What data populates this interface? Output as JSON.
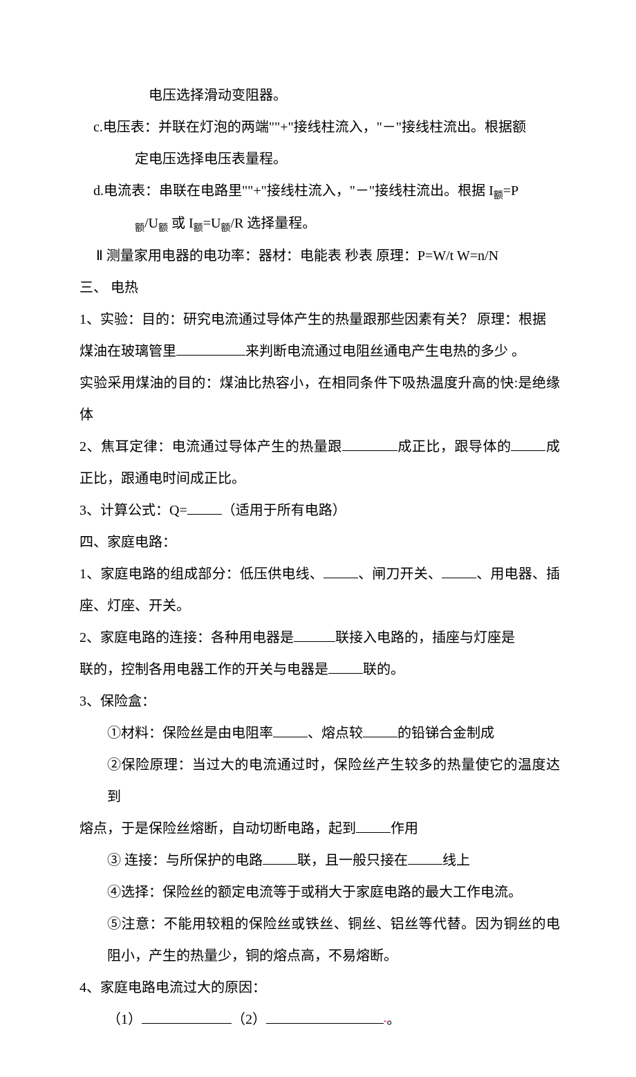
{
  "lines": {
    "l1": "电压选择滑动变阻器。",
    "l2_a": "c.电压表：并联在灯泡的两端\"\"+\"接线柱流入，\"－\"接线柱流出。根据额",
    "l2_b": "定电压选择电压表量程。",
    "l3_a": "d.电流表：串联在电路里\"\"+\"接线柱流入，\"－\"接线柱流出。根据 I",
    "l3_sub1": "额",
    "l3_b": "=P",
    "l3_c": "/U",
    "l3_d": " 或 I",
    "l3_e": "=U",
    "l3_f": "/R 选择量程。",
    "l4": "Ⅱ 测量家用电器的电功率：器材：电能表 秒表 原理：P=W/t     W=n/N",
    "l5": "三、 电热",
    "l6_a": "1、实验：目的：研究电流通过导体产生的热量跟那些因素有关？  原理：根据",
    "l6_b": "煤油在玻璃管里",
    "l6_c": "来判断电流通过电阻丝通电产生电热的多少 。",
    "l7": "实验采用煤油的目的：煤油比热容小，在相同条件下吸热温度升高的快:是绝缘体",
    "l8_a": "2、焦耳定律：电流通过导体产生的热量跟",
    "l8_b": "成正比，跟导体的",
    "l8_c": "成正比，跟通电时间成正比。",
    "l9_a": "3、计算公式：Q=",
    "l9_b": "（适用于所有电路）",
    "l10": "四、家庭电路：",
    "l11_a": "1、家庭电路的组成部分：低压供电线、",
    "l11_b": "、闸刀开关、",
    "l11_c": "、用电器、插座、灯座、开关。",
    "l12_a": "2、家庭电路的连接：各种用电器是",
    "l12_b": "联接入电路的，插座与灯座是",
    "l12_c": "联的，控制各用电器工作的开关与电器是",
    "l12_d": "联的。",
    "l13": "3、保险盒：",
    "l14_a": "①材料：保险丝是由电阻率",
    "l14_b": "、熔点较",
    "l14_c": "的铅锑合金制成",
    "l15_a": "②保险原理：当过大的电流通过时，保险丝产生较多的热量使它的温度达到",
    "l15_b": "熔点，于是保险丝熔断，自动切断电路，起到",
    "l15_c": "作用",
    "l16_a": "③ 连接：与所保护的电路",
    "l16_b": "联，且一般只接在",
    "l16_c": "线上",
    "l17": "④选择：保险丝的额定电流等于或稍大于家庭电路的最大工作电流。",
    "l18": "⑤注意：不能用较粗的保险丝或铁丝、铜丝、铝丝等代替。因为铜丝的电阻小，产生的热量少，铜的熔点高，不易熔断。",
    "l19": "4、家庭电路电流过大的原因：",
    "l20_a": "（1）",
    "l20_b": "（2）",
    "l20_c": "。"
  },
  "colors": {
    "background": "#ffffff",
    "text": "#000000",
    "accent": "#ff6ec7"
  },
  "typography": {
    "font_family": "SimSun",
    "font_size_pt": 15,
    "line_height": 2.3
  }
}
